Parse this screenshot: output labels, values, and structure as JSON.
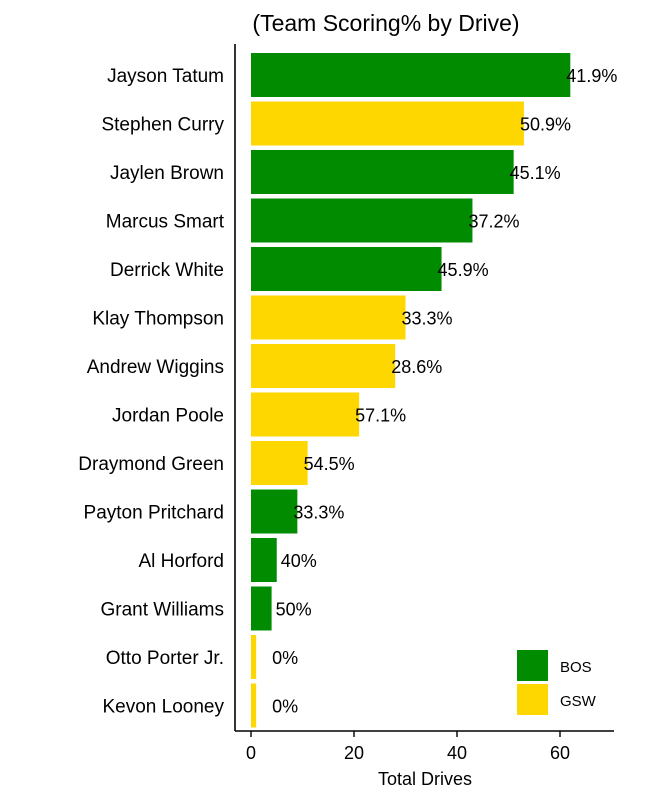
{
  "chart_data": {
    "type": "bar",
    "orientation": "horizontal",
    "title": "(Team Scoring% by Drive)",
    "xlabel": "Total Drives",
    "ylabel": "",
    "xlim": [
      0,
      70
    ],
    "xticks": [
      0,
      20,
      40,
      60
    ],
    "grid": false,
    "legend_position": "bottom-right",
    "colors": {
      "BOS": "#008B00",
      "GSW": "#FFD700"
    },
    "legend": [
      {
        "team": "BOS",
        "label": "BOS"
      },
      {
        "team": "GSW",
        "label": "GSW"
      }
    ],
    "rows": [
      {
        "player": "Jayson Tatum",
        "drives": 62,
        "team": "BOS",
        "label": "41.9%"
      },
      {
        "player": "Stephen Curry",
        "drives": 53,
        "team": "GSW",
        "label": "50.9%"
      },
      {
        "player": "Jaylen Brown",
        "drives": 51,
        "team": "BOS",
        "label": "45.1%"
      },
      {
        "player": "Marcus Smart",
        "drives": 43,
        "team": "BOS",
        "label": "37.2%"
      },
      {
        "player": "Derrick White",
        "drives": 37,
        "team": "BOS",
        "label": "45.9%"
      },
      {
        "player": "Klay Thompson",
        "drives": 30,
        "team": "GSW",
        "label": "33.3%"
      },
      {
        "player": "Andrew Wiggins",
        "drives": 28,
        "team": "GSW",
        "label": "28.6%"
      },
      {
        "player": "Jordan Poole",
        "drives": 21,
        "team": "GSW",
        "label": "57.1%"
      },
      {
        "player": "Draymond Green",
        "drives": 11,
        "team": "GSW",
        "label": "54.5%"
      },
      {
        "player": "Payton Pritchard",
        "drives": 9,
        "team": "BOS",
        "label": "33.3%"
      },
      {
        "player": "Al Horford",
        "drives": 5,
        "team": "BOS",
        "label": "40%"
      },
      {
        "player": "Grant Williams",
        "drives": 4,
        "team": "BOS",
        "label": "50%"
      },
      {
        "player": "Otto Porter Jr.",
        "drives": 1,
        "team": "GSW",
        "label": "0%"
      },
      {
        "player": "Kevon Looney",
        "drives": 1,
        "team": "GSW",
        "label": "0%"
      }
    ]
  }
}
